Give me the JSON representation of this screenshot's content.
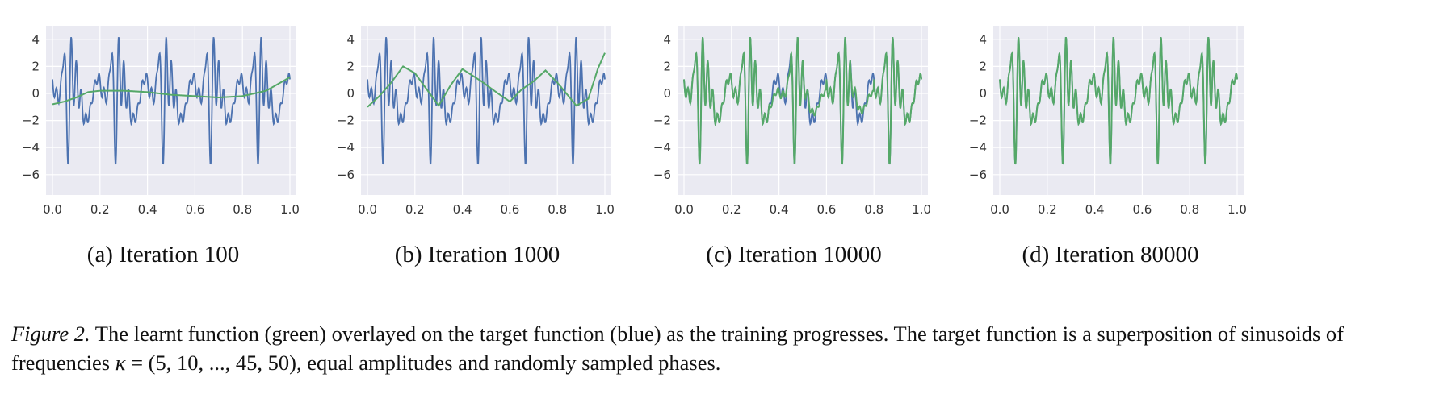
{
  "panels": [
    {
      "id": "a",
      "caption": "(a) Iteration 100"
    },
    {
      "id": "b",
      "caption": "(b) Iteration 1000"
    },
    {
      "id": "c",
      "caption": "(c) Iteration 10000"
    },
    {
      "id": "d",
      "caption": "(d) Iteration 80000"
    }
  ],
  "caption": {
    "label": "Figure 2.",
    "text1": " The learnt function (green) overlayed on the target function (blue) as the training progresses. The target function is a superposition of sinusoids of frequencies ",
    "kappa": "κ",
    "text2": " = (5, 10, ..., 45, 50), equal amplitudes and randomly sampled phases."
  },
  "chart_data": [
    {
      "type": "line",
      "title": "(a) Iteration 100",
      "xlim": [
        0.0,
        1.0
      ],
      "ylim": [
        -7.5,
        5.0
      ],
      "xticks": [
        "0.0",
        "0.2",
        "0.4",
        "0.6",
        "0.8",
        "1.0"
      ],
      "yticks": [
        "4",
        "2",
        "0",
        "−2",
        "−4",
        "−6"
      ],
      "ytick_values": [
        4,
        2,
        0,
        -2,
        -4,
        -6
      ],
      "xtick_values": [
        0.0,
        0.2,
        0.4,
        0.6,
        0.8,
        1.0
      ],
      "series": [
        {
          "name": "target",
          "color": "#4c72b0"
        },
        {
          "name": "learnt",
          "color": "#55a868",
          "x": [
            0.0,
            0.05,
            0.1,
            0.15,
            0.2,
            0.3,
            0.4,
            0.5,
            0.6,
            0.7,
            0.8,
            0.9,
            1.0
          ],
          "y": [
            -0.8,
            -0.6,
            -0.3,
            0.1,
            0.2,
            0.2,
            0.1,
            -0.1,
            -0.2,
            -0.3,
            -0.2,
            0.2,
            1.2
          ]
        }
      ]
    },
    {
      "type": "line",
      "title": "(b) Iteration 1000",
      "xlim": [
        0.0,
        1.0
      ],
      "ylim": [
        -7.5,
        5.0
      ],
      "xticks": [
        "0.0",
        "0.2",
        "0.4",
        "0.6",
        "0.8",
        "1.0"
      ],
      "yticks": [
        "4",
        "2",
        "0",
        "−2",
        "−4",
        "−6"
      ],
      "ytick_values": [
        4,
        2,
        0,
        -2,
        -4,
        -6
      ],
      "xtick_values": [
        0.0,
        0.2,
        0.4,
        0.6,
        0.8,
        1.0
      ],
      "series": [
        {
          "name": "target",
          "color": "#4c72b0"
        },
        {
          "name": "learnt",
          "color": "#55a868",
          "x": [
            0.0,
            0.05,
            0.1,
            0.15,
            0.2,
            0.3,
            0.35,
            0.4,
            0.48,
            0.55,
            0.6,
            0.65,
            0.7,
            0.75,
            0.8,
            0.88,
            0.93,
            0.97,
            1.0
          ],
          "y": [
            -1.0,
            -0.2,
            0.8,
            2.0,
            1.5,
            -0.9,
            0.6,
            1.8,
            0.9,
            0.0,
            -0.6,
            0.3,
            0.9,
            1.7,
            0.8,
            -0.9,
            -0.4,
            1.8,
            3.0
          ]
        }
      ]
    },
    {
      "type": "line",
      "title": "(c) Iteration 10000",
      "xlim": [
        0.0,
        1.0
      ],
      "ylim": [
        -7.5,
        5.0
      ],
      "xticks": [
        "0.0",
        "0.2",
        "0.4",
        "0.6",
        "0.8",
        "1.0"
      ],
      "yticks": [
        "4",
        "2",
        "0",
        "−2",
        "−4",
        "−6"
      ],
      "ytick_values": [
        4,
        2,
        0,
        -2,
        -4,
        -6
      ],
      "xtick_values": [
        0.0,
        0.2,
        0.4,
        0.6,
        0.8,
        1.0
      ],
      "series": [
        {
          "name": "target",
          "color": "#4c72b0"
        },
        {
          "name": "learnt",
          "color": "#55a868",
          "fit": "partial"
        }
      ]
    },
    {
      "type": "line",
      "title": "(d) Iteration 80000",
      "xlim": [
        0.0,
        1.0
      ],
      "ylim": [
        -7.5,
        5.0
      ],
      "xticks": [
        "0.0",
        "0.2",
        "0.4",
        "0.6",
        "0.8",
        "1.0"
      ],
      "yticks": [
        "4",
        "2",
        "0",
        "−2",
        "−4",
        "−6"
      ],
      "ytick_values": [
        4,
        2,
        0,
        -2,
        -4,
        -6
      ],
      "xtick_values": [
        0.0,
        0.2,
        0.4,
        0.6,
        0.8,
        1.0
      ],
      "series": [
        {
          "name": "target",
          "color": "#4c72b0"
        },
        {
          "name": "learnt",
          "color": "#55a868",
          "fit": "full"
        }
      ]
    }
  ]
}
